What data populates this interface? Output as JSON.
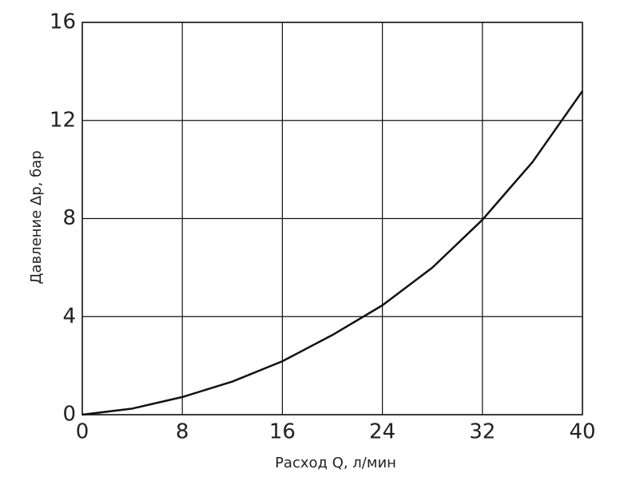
{
  "chart_data": {
    "type": "line",
    "x_label": "Расход Q, л/мин",
    "y_label": "Давление Δр, бар",
    "x": [
      0,
      4,
      8,
      12,
      16,
      20,
      24,
      28,
      32,
      36,
      40
    ],
    "series": [
      {
        "color": "#111111",
        "values": [
          0,
          0.25,
          0.72,
          1.35,
          2.18,
          3.25,
          4.46,
          6.0,
          7.95,
          10.3,
          13.2
        ]
      }
    ],
    "xlim": [
      0,
      40
    ],
    "xticks": [
      0,
      8,
      16,
      24,
      32,
      40
    ],
    "ylim": [
      0,
      16
    ],
    "yticks": [
      0,
      4,
      8,
      12,
      16
    ],
    "grid": true
  }
}
